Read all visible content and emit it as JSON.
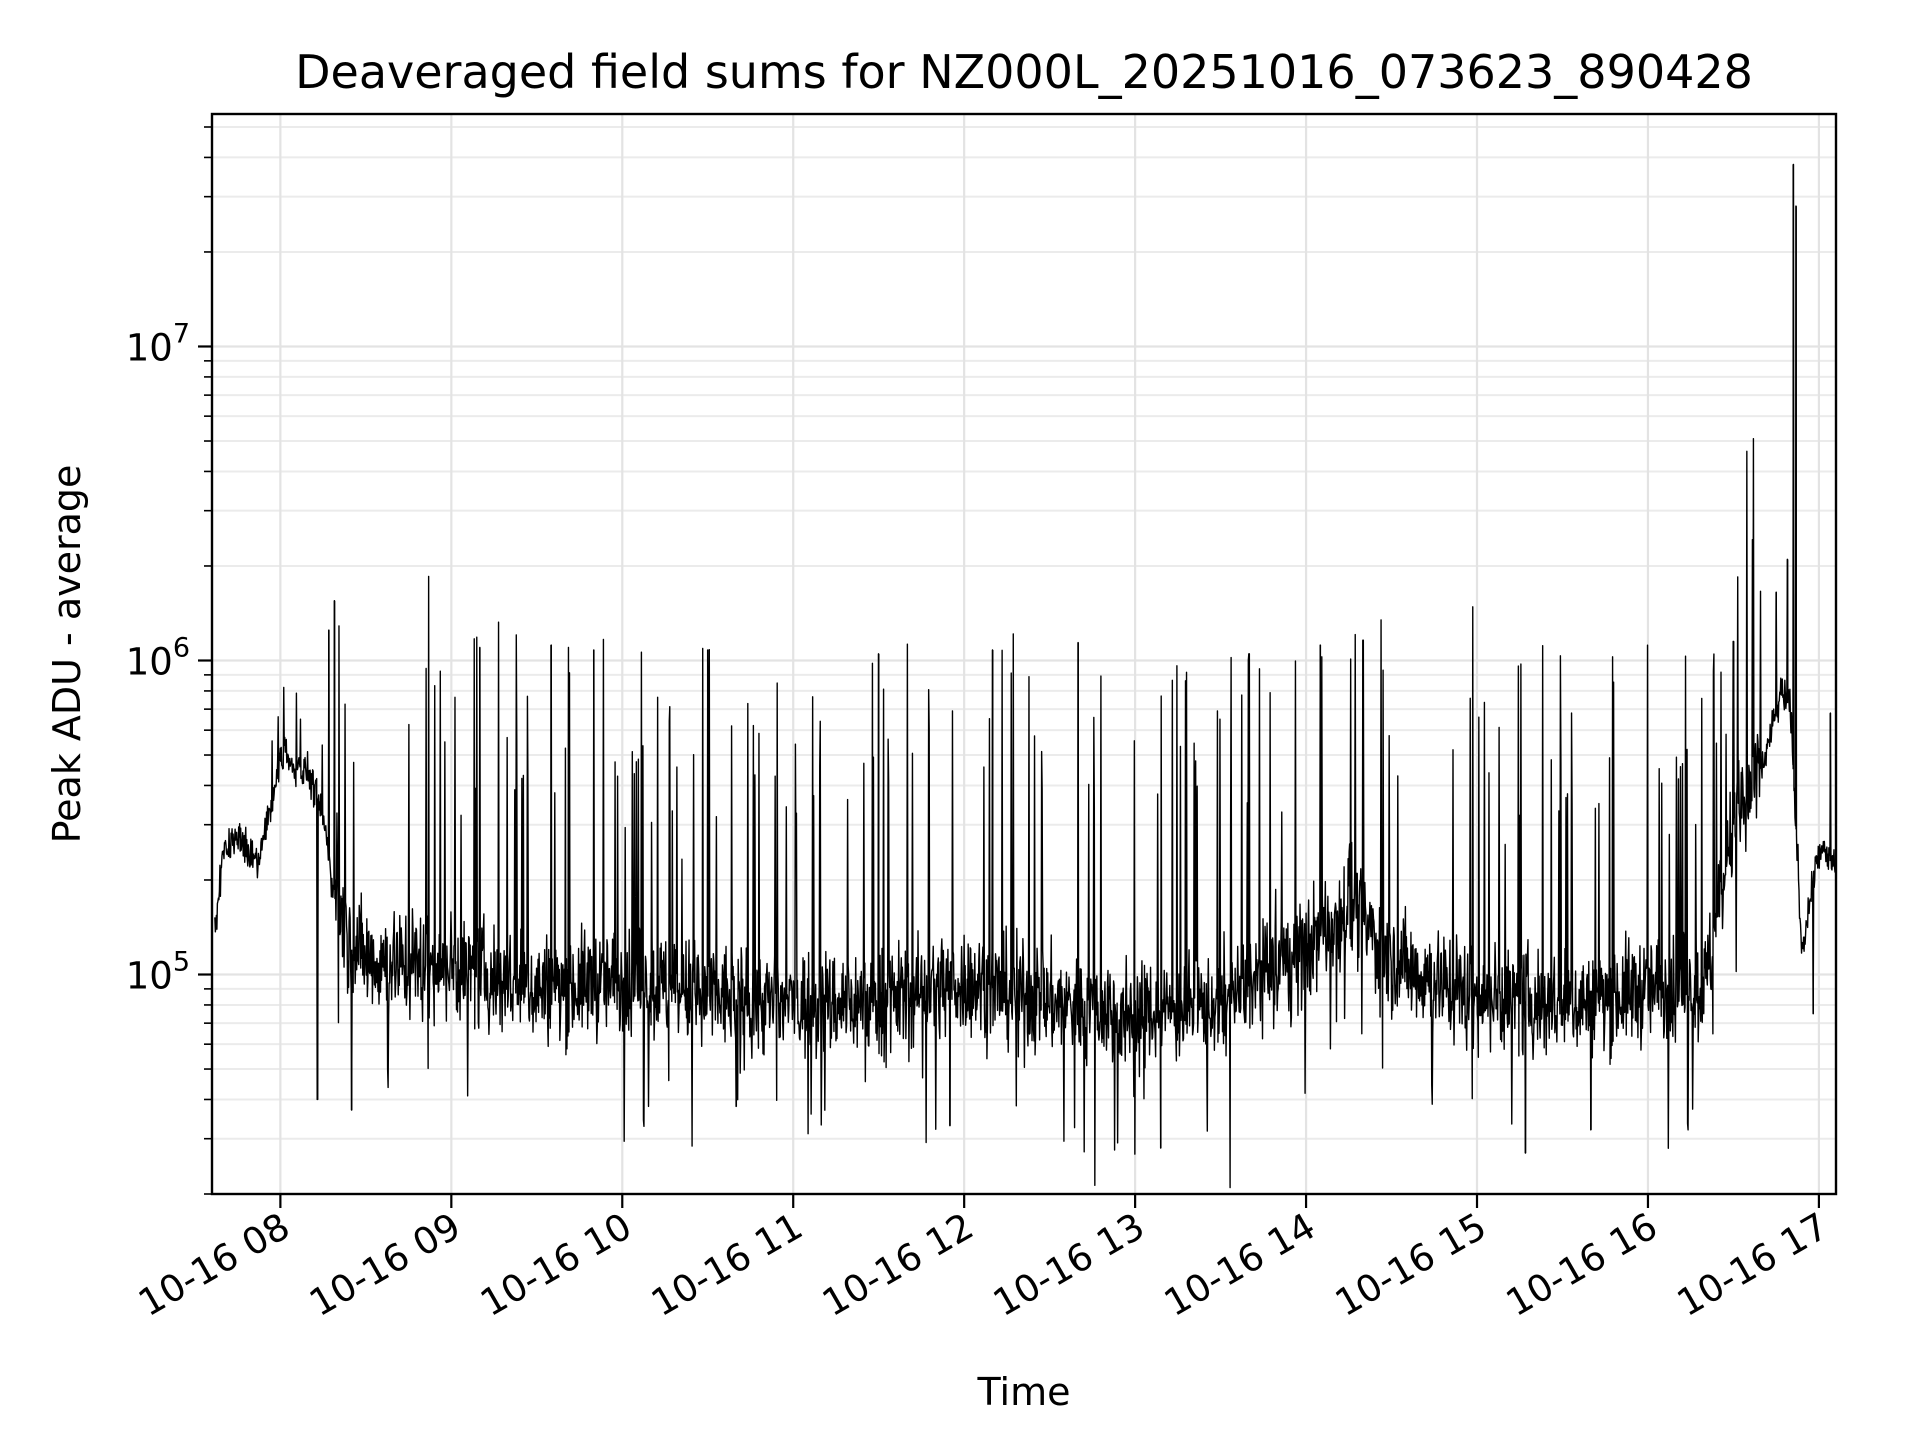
{
  "chart_data": {
    "type": "line",
    "title": "Deaveraged field sums for NZ000L_20251016_073623_890428",
    "xlabel": "Time",
    "ylabel": "Peak ADU - average",
    "xscale": "time",
    "yscale": "log",
    "xlim": [
      "2025-10-16 07:36:00",
      "2025-10-16 17:06:00"
    ],
    "ylim": [
      20000,
      55000000
    ],
    "grid": {
      "major": true,
      "minor_y": true
    },
    "line_color": "#000000",
    "x_ticks": [
      {
        "value": "2025-10-16 08:00",
        "label": "10-16 08"
      },
      {
        "value": "2025-10-16 09:00",
        "label": "10-16 09"
      },
      {
        "value": "2025-10-16 10:00",
        "label": "10-16 10"
      },
      {
        "value": "2025-10-16 11:00",
        "label": "10-16 11"
      },
      {
        "value": "2025-10-16 12:00",
        "label": "10-16 12"
      },
      {
        "value": "2025-10-16 13:00",
        "label": "10-16 13"
      },
      {
        "value": "2025-10-16 14:00",
        "label": "10-16 14"
      },
      {
        "value": "2025-10-16 15:00",
        "label": "10-16 15"
      },
      {
        "value": "2025-10-16 16:00",
        "label": "10-16 16"
      },
      {
        "value": "2025-10-16 17:00",
        "label": "10-16 17"
      }
    ],
    "y_ticks": [
      {
        "value": 100000,
        "base": "10",
        "exp": "5"
      },
      {
        "value": 1000000,
        "base": "10",
        "exp": "6"
      },
      {
        "value": 10000000,
        "base": "10",
        "exp": "7"
      }
    ],
    "series": [
      {
        "x": [
          "2025-10-16 07:36",
          "2025-10-16 07:40",
          "2025-10-16 07:45",
          "2025-10-16 07:52",
          "2025-10-16 08:00",
          "2025-10-16 08:10",
          "2025-10-16 08:15",
          "2025-10-16 08:18",
          "2025-10-16 08:25",
          "2025-10-16 08:35",
          "2025-10-16 08:45",
          "2025-10-16 09:00",
          "2025-10-16 09:30",
          "2025-10-16 10:00",
          "2025-10-16 10:30",
          "2025-10-16 11:00",
          "2025-10-16 11:30",
          "2025-10-16 12:00",
          "2025-10-16 12:30",
          "2025-10-16 13:00",
          "2025-10-16 13:30",
          "2025-10-16 14:00",
          "2025-10-16 14:15",
          "2025-10-16 14:30",
          "2025-10-16 15:00",
          "2025-10-16 15:30",
          "2025-10-16 16:00",
          "2025-10-16 16:20",
          "2025-10-16 16:30",
          "2025-10-16 16:40",
          "2025-10-16 16:47",
          "2025-10-16 16:50",
          "2025-10-16 16:54",
          "2025-10-16 17:00",
          "2025-10-16 17:06"
        ],
        "y": [
          110000,
          250000,
          280000,
          220000,
          480000,
          440000,
          320000,
          200000,
          120000,
          110000,
          110000,
          105000,
          90000,
          95000,
          85000,
          80000,
          82000,
          95000,
          82000,
          75000,
          80000,
          120000,
          170000,
          110000,
          85000,
          80000,
          90000,
          90000,
          300000,
          450000,
          800000,
          700000,
          120000,
          250000,
          220000
        ],
        "peaks": [
          {
            "x": "2025-10-16 08:19",
            "y": 1550000
          },
          {
            "x": "2025-10-16 08:17",
            "y": 1250000
          },
          {
            "x": "2025-10-16 08:13",
            "y": 40000
          },
          {
            "x": "2025-10-16 08:25",
            "y": 37000
          },
          {
            "x": "2025-10-16 09:10",
            "y": 1100000
          },
          {
            "x": "2025-10-16 09:35",
            "y": 1120000
          },
          {
            "x": "2025-10-16 09:50",
            "y": 1080000
          },
          {
            "x": "2025-10-16 10:30",
            "y": 1080000
          },
          {
            "x": "2025-10-16 10:40",
            "y": 38000
          },
          {
            "x": "2025-10-16 11:30",
            "y": 1050000
          },
          {
            "x": "2025-10-16 11:55",
            "y": 33000
          },
          {
            "x": "2025-10-16 12:10",
            "y": 1080000
          },
          {
            "x": "2025-10-16 12:40",
            "y": 1140000
          },
          {
            "x": "2025-10-16 13:09",
            "y": 28000
          },
          {
            "x": "2025-10-16 13:40",
            "y": 1050000
          },
          {
            "x": "2025-10-16 14:05",
            "y": 1120000
          },
          {
            "x": "2025-10-16 14:20",
            "y": 1160000
          },
          {
            "x": "2025-10-16 15:17",
            "y": 27000
          },
          {
            "x": "2025-10-16 15:40",
            "y": 32000
          },
          {
            "x": "2025-10-16 16:30",
            "y": 1150000
          },
          {
            "x": "2025-10-16 16:51",
            "y": 38000000
          },
          {
            "x": "2025-10-16 16:52",
            "y": 28000000
          },
          {
            "x": "2025-10-16 16:49",
            "y": 2100000
          },
          {
            "x": "2025-10-16 16:45",
            "y": 1650000
          },
          {
            "x": "2025-10-16 16:58",
            "y": 75000
          },
          {
            "x": "2025-10-16 17:04",
            "y": 680000
          }
        ]
      }
    ]
  }
}
